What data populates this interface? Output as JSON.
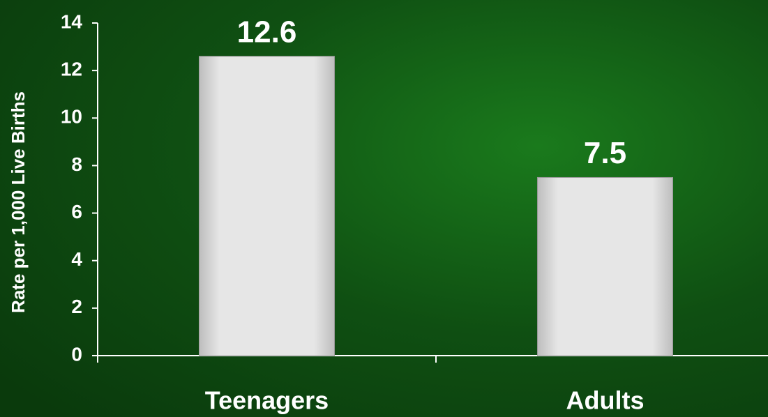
{
  "chart_data": {
    "type": "bar",
    "y_label": "Rate per 1,000 Live Births",
    "categories": [
      "Teenagers",
      "Adults"
    ],
    "values": [
      12.6,
      7.5
    ],
    "color": "#e2e2e2",
    "ylim": [
      0,
      14
    ],
    "yticks": [
      0,
      2,
      4,
      6,
      8,
      10,
      12,
      14
    ]
  }
}
